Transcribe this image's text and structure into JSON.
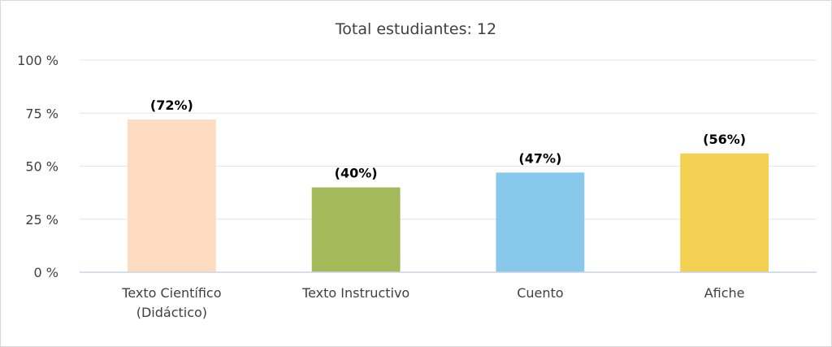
{
  "chart_data": {
    "type": "bar",
    "title": "Total estudiantes: 12",
    "categories": [
      [
        "Texto Científico",
        "(Didáctico)"
      ],
      [
        "Texto Instructivo"
      ],
      [
        "Cuento"
      ],
      [
        "Afiche"
      ]
    ],
    "values": [
      72,
      40,
      47,
      56
    ],
    "data_labels": [
      "(72%)",
      "(40%)",
      "(47%)",
      "(56%)"
    ],
    "colors": [
      "#fddcc1",
      "#a3b95a",
      "#87c8eb",
      "#f1d052"
    ],
    "ylim": [
      0,
      100
    ],
    "yticks": [
      0,
      25,
      50,
      75,
      100
    ],
    "ytick_labels": [
      "0 %",
      "25 %",
      "50 %",
      "75 %",
      "100 %"
    ],
    "xlabel": "",
    "ylabel": "",
    "grid": true,
    "legend": "none"
  }
}
